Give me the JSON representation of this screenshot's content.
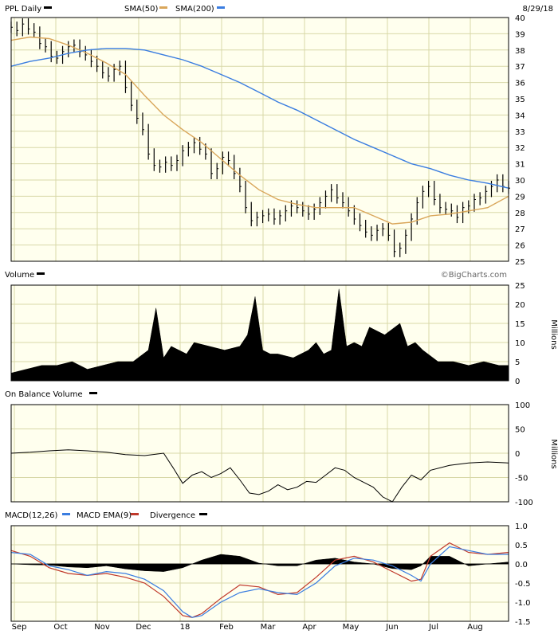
{
  "header": {
    "symbol_label": "PPL Daily",
    "sma50_label": "SMA(50)",
    "sma200_label": "SMA(200)",
    "date": "8/29/18",
    "credit": "©BigCharts.com"
  },
  "colors": {
    "background": "#ffffee",
    "grid": "#d8d8a8",
    "border": "#000000",
    "price_bars": "#000000",
    "sma50": "#d9a65a",
    "sma200": "#3a7de0",
    "macd": "#3a7de0",
    "macd_ema": "#c0392b",
    "divergence": "#000000",
    "volume": "#000000",
    "obv": "#000000"
  },
  "x_axis": {
    "labels": [
      "Sep",
      "Oct",
      "Nov",
      "Dec",
      "18",
      "Feb",
      "Mar",
      "Apr",
      "May",
      "Jun",
      "Jul",
      "Aug"
    ]
  },
  "chart_data": [
    {
      "type": "ohlc",
      "title": "PPL Daily",
      "yrange": [
        25,
        40
      ],
      "yticks": [
        25,
        26,
        27,
        28,
        29,
        30,
        31,
        32,
        33,
        34,
        35,
        36,
        37,
        38,
        39,
        40
      ],
      "grid": true,
      "series": [
        {
          "name": "PPL",
          "x": [
            0,
            3,
            6,
            9,
            12,
            15,
            18,
            21,
            24,
            27,
            30,
            33,
            36,
            39,
            42,
            45,
            48,
            51,
            54,
            57,
            60,
            63,
            66,
            69,
            72,
            75,
            78,
            81,
            84,
            87,
            90,
            93,
            96,
            99,
            102,
            105,
            108,
            111,
            114,
            117,
            120,
            123,
            126,
            129,
            132,
            135,
            138,
            141,
            144,
            147,
            150,
            153,
            156,
            159,
            162,
            165,
            168,
            171,
            174,
            177,
            180,
            183,
            186,
            189,
            192,
            195,
            198,
            201,
            204,
            207,
            210,
            213,
            216,
            219,
            222,
            225,
            228,
            231,
            234,
            237,
            240,
            243,
            246,
            249,
            252,
            255,
            258,
            261
          ],
          "values": [
            39.4,
            39.2,
            39.6,
            39.3,
            39.1,
            38.4,
            38.2,
            37.6,
            37.5,
            37.9,
            38.2,
            38.3,
            37.9,
            37.7,
            37.3,
            37.0,
            36.6,
            36.4,
            36.8,
            37.0,
            35.7,
            34.6,
            33.8,
            33.1,
            31.6,
            30.9,
            30.8,
            31.1,
            30.9,
            31.2,
            31.8,
            32.0,
            32.3,
            31.9,
            31.6,
            30.4,
            30.7,
            31.4,
            31.2,
            30.4,
            29.6,
            28.3,
            27.5,
            27.7,
            27.8,
            27.9,
            27.6,
            27.8,
            28.1,
            28.4,
            28.3,
            28.1,
            27.9,
            28.2,
            28.6,
            29.0,
            29.4,
            28.9,
            28.6,
            28.1,
            27.6,
            27.2,
            26.8,
            26.6,
            26.9,
            27.0,
            26.6,
            25.6,
            25.8,
            26.6,
            27.6,
            28.6,
            29.3,
            29.6,
            28.8,
            28.3,
            28.2,
            28.1,
            27.7,
            28.3,
            28.4,
            28.8,
            28.9,
            29.3,
            29.6,
            30.0,
            29.6,
            29.5
          ]
        },
        {
          "name": "SMA(50)",
          "x": [
            0,
            10,
            20,
            30,
            40,
            50,
            60,
            70,
            80,
            90,
            100,
            110,
            120,
            130,
            140,
            150,
            160,
            170,
            180,
            190,
            200,
            210,
            220,
            230,
            240,
            250,
            261
          ],
          "values": [
            38.6,
            38.8,
            38.7,
            38.3,
            37.8,
            37.2,
            36.5,
            35.2,
            34.0,
            33.1,
            32.3,
            31.3,
            30.3,
            29.4,
            28.8,
            28.5,
            28.3,
            28.3,
            28.3,
            27.8,
            27.3,
            27.4,
            27.8,
            27.9,
            28.1,
            28.3,
            29.0
          ]
        },
        {
          "name": "SMA(200)",
          "x": [
            0,
            10,
            20,
            30,
            40,
            50,
            60,
            70,
            80,
            90,
            100,
            110,
            120,
            130,
            140,
            150,
            160,
            170,
            180,
            190,
            200,
            210,
            220,
            230,
            240,
            250,
            261
          ],
          "values": [
            37.0,
            37.3,
            37.5,
            37.8,
            38.0,
            38.1,
            38.1,
            38.0,
            37.7,
            37.4,
            37.0,
            36.5,
            36.0,
            35.4,
            34.8,
            34.3,
            33.7,
            33.1,
            32.5,
            32.0,
            31.5,
            31.0,
            30.7,
            30.3,
            30.0,
            29.8,
            29.5
          ]
        }
      ]
    },
    {
      "type": "area",
      "title": "Volume",
      "ylabel": "Millions",
      "yrange": [
        0,
        25
      ],
      "yticks": [
        0,
        5,
        10,
        15,
        20,
        25
      ],
      "series": [
        {
          "name": "Volume",
          "x": [
            0,
            8,
            16,
            24,
            32,
            40,
            48,
            56,
            64,
            72,
            76,
            80,
            84,
            88,
            92,
            96,
            104,
            112,
            120,
            124,
            128,
            132,
            136,
            140,
            148,
            156,
            160,
            164,
            168,
            172,
            176,
            180,
            184,
            188,
            196,
            204,
            208,
            212,
            216,
            224,
            232,
            240,
            248,
            256,
            261
          ],
          "values": [
            2,
            3,
            4,
            4,
            5,
            3,
            4,
            5,
            5,
            8,
            19,
            6,
            9,
            8,
            7,
            10,
            9,
            8,
            9,
            12,
            22,
            8,
            7,
            7,
            6,
            8,
            10,
            7,
            8,
            24,
            9,
            10,
            9,
            14,
            12,
            15,
            9,
            10,
            8,
            5,
            5,
            4,
            5,
            4,
            4
          ]
        }
      ]
    },
    {
      "type": "line",
      "title": "On Balance Volume",
      "ylabel": "Millions",
      "yrange": [
        -100,
        100
      ],
      "yticks": [
        -100,
        -50,
        0,
        50,
        100
      ],
      "series": [
        {
          "name": "OBV",
          "x": [
            0,
            10,
            20,
            30,
            40,
            50,
            60,
            70,
            80,
            85,
            90,
            95,
            100,
            105,
            110,
            115,
            120,
            125,
            130,
            135,
            140,
            145,
            150,
            155,
            160,
            165,
            170,
            175,
            180,
            185,
            190,
            195,
            200,
            205,
            210,
            215,
            220,
            230,
            240,
            250,
            261
          ],
          "values": [
            0,
            2,
            5,
            7,
            5,
            2,
            -3,
            -5,
            0,
            -30,
            -62,
            -45,
            -38,
            -50,
            -42,
            -30,
            -55,
            -82,
            -85,
            -78,
            -65,
            -75,
            -70,
            -58,
            -60,
            -45,
            -30,
            -35,
            -50,
            -60,
            -70,
            -90,
            -100,
            -70,
            -45,
            -55,
            -35,
            -25,
            -20,
            -18,
            -20
          ]
        }
      ]
    },
    {
      "type": "line",
      "title": "MACD(12,26)",
      "yrange": [
        -1.5,
        1.0
      ],
      "yticks": [
        -1.5,
        -1.0,
        -0.5,
        0.0,
        0.5,
        1.0
      ],
      "series": [
        {
          "name": "MACD EMA(9)",
          "x": [
            0,
            10,
            20,
            30,
            40,
            50,
            60,
            70,
            80,
            90,
            95,
            100,
            110,
            120,
            130,
            140,
            150,
            160,
            170,
            180,
            190,
            200,
            210,
            215,
            220,
            230,
            240,
            250,
            261
          ],
          "values": [
            0.35,
            0.2,
            -0.1,
            -0.25,
            -0.3,
            -0.25,
            -0.35,
            -0.5,
            -0.85,
            -1.35,
            -1.4,
            -1.3,
            -0.9,
            -0.55,
            -0.6,
            -0.8,
            -0.75,
            -0.35,
            0.1,
            0.2,
            0.05,
            -0.2,
            -0.45,
            -0.4,
            0.2,
            0.55,
            0.3,
            0.25,
            0.3
          ]
        },
        {
          "name": "MACD",
          "x": [
            0,
            10,
            20,
            30,
            40,
            50,
            60,
            70,
            80,
            90,
            95,
            100,
            110,
            120,
            130,
            140,
            150,
            160,
            170,
            180,
            190,
            200,
            210,
            215,
            220,
            230,
            240,
            250,
            261
          ],
          "values": [
            0.3,
            0.25,
            -0.05,
            -0.15,
            -0.3,
            -0.2,
            -0.25,
            -0.4,
            -0.7,
            -1.25,
            -1.4,
            -1.35,
            -1.0,
            -0.75,
            -0.65,
            -0.75,
            -0.8,
            -0.5,
            -0.05,
            0.15,
            0.1,
            -0.05,
            -0.3,
            -0.45,
            0.0,
            0.45,
            0.35,
            0.25,
            0.25
          ]
        },
        {
          "name": "Divergence",
          "x": [
            0,
            10,
            20,
            30,
            40,
            50,
            60,
            70,
            80,
            90,
            95,
            100,
            110,
            120,
            130,
            140,
            150,
            160,
            170,
            180,
            190,
            200,
            210,
            215,
            220,
            230,
            240,
            250,
            261
          ],
          "values": [
            0.0,
            -0.02,
            -0.03,
            -0.08,
            -0.1,
            -0.05,
            -0.13,
            -0.18,
            -0.2,
            -0.1,
            0.0,
            0.1,
            0.25,
            0.2,
            0.02,
            -0.05,
            -0.05,
            0.1,
            0.15,
            0.05,
            0.0,
            -0.12,
            -0.15,
            -0.05,
            0.2,
            0.2,
            -0.05,
            0.0,
            0.05
          ]
        }
      ]
    }
  ]
}
